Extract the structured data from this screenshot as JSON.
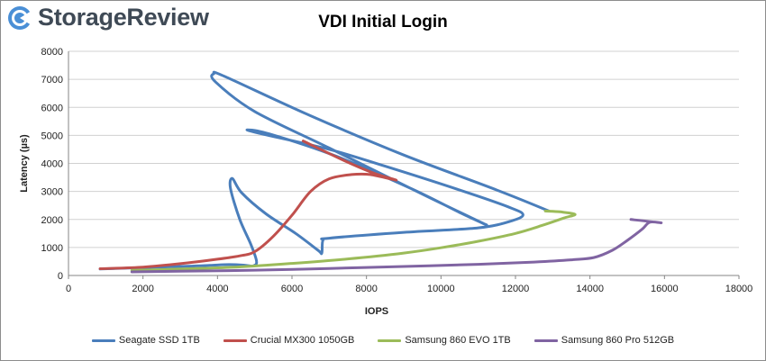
{
  "brand": {
    "name": "StorageReview",
    "icon": "storagereview-logo-icon",
    "icon_color": "#4a8fd6"
  },
  "chart_data": {
    "type": "line",
    "title": "VDI Initial Login",
    "xlabel": "IOPS",
    "ylabel": "Latency (µs)",
    "xlim": [
      0,
      18000
    ],
    "ylim": [
      0,
      8000
    ],
    "x_ticks": [
      0,
      2000,
      4000,
      6000,
      8000,
      10000,
      12000,
      14000,
      16000,
      18000
    ],
    "y_ticks": [
      0,
      1000,
      2000,
      3000,
      4000,
      5000,
      6000,
      7000,
      8000
    ],
    "grid": "horizontal",
    "legend": "bottom",
    "series": [
      {
        "name": "Seagate SSD 1TB",
        "color": "#4a7ebb",
        "points": [
          [
            850,
            230
          ],
          [
            2200,
            290
          ],
          [
            3200,
            330
          ],
          [
            3800,
            360
          ],
          [
            4300,
            390
          ],
          [
            4700,
            370
          ],
          [
            4950,
            340
          ],
          [
            5050,
            500
          ],
          [
            4900,
            1100
          ],
          [
            4600,
            2000
          ],
          [
            4350,
            3100
          ],
          [
            4400,
            3460
          ],
          [
            4650,
            2950
          ],
          [
            5300,
            2200
          ],
          [
            6100,
            1500
          ],
          [
            6700,
            900
          ],
          [
            6800,
            800
          ],
          [
            6830,
            1250
          ],
          [
            7000,
            1330
          ],
          [
            9000,
            1540
          ],
          [
            11000,
            1700
          ],
          [
            11900,
            1950
          ],
          [
            12200,
            2180
          ],
          [
            11800,
            2450
          ],
          [
            10500,
            3050
          ],
          [
            8500,
            3900
          ],
          [
            7000,
            4500
          ],
          [
            5200,
            5050
          ],
          [
            4800,
            5200
          ],
          [
            5400,
            5050
          ],
          [
            7200,
            4250
          ],
          [
            9200,
            3100
          ],
          [
            10500,
            2250
          ],
          [
            11200,
            1820
          ],
          [
            9500,
            2900
          ],
          [
            7000,
            4550
          ],
          [
            5000,
            5850
          ],
          [
            3950,
            6900
          ],
          [
            3900,
            7200
          ],
          [
            4200,
            7100
          ],
          [
            6500,
            5700
          ],
          [
            9000,
            4300
          ],
          [
            11500,
            3050
          ],
          [
            12900,
            2300
          ]
        ]
      },
      {
        "name": "Crucial MX300 1050GB",
        "color": "#c0504d",
        "points": [
          [
            850,
            240
          ],
          [
            2000,
            300
          ],
          [
            3000,
            420
          ],
          [
            4000,
            580
          ],
          [
            4600,
            700
          ],
          [
            5000,
            850
          ],
          [
            5500,
            1400
          ],
          [
            6000,
            2150
          ],
          [
            6500,
            3000
          ],
          [
            7000,
            3450
          ],
          [
            7600,
            3600
          ],
          [
            8100,
            3600
          ],
          [
            8800,
            3400
          ],
          [
            8200,
            3650
          ],
          [
            7400,
            4100
          ],
          [
            6300,
            4800
          ]
        ]
      },
      {
        "name": "Samsung 860 EVO 1TB",
        "color": "#9bbb59",
        "points": [
          [
            1700,
            180
          ],
          [
            3000,
            230
          ],
          [
            4500,
            300
          ],
          [
            6000,
            430
          ],
          [
            7500,
            590
          ],
          [
            9000,
            800
          ],
          [
            10000,
            990
          ],
          [
            11000,
            1220
          ],
          [
            12000,
            1500
          ],
          [
            12700,
            1780
          ],
          [
            13300,
            2050
          ],
          [
            13600,
            2180
          ],
          [
            13200,
            2270
          ],
          [
            12800,
            2300
          ]
        ]
      },
      {
        "name": "Samsung 860 Pro 512GB",
        "color": "#8064a2",
        "points": [
          [
            1700,
            130
          ],
          [
            3000,
            150
          ],
          [
            5000,
            190
          ],
          [
            7000,
            250
          ],
          [
            9000,
            320
          ],
          [
            11000,
            400
          ],
          [
            12500,
            480
          ],
          [
            13500,
            560
          ],
          [
            14100,
            640
          ],
          [
            14600,
            900
          ],
          [
            15000,
            1250
          ],
          [
            15400,
            1650
          ],
          [
            15600,
            1900
          ],
          [
            15900,
            1880
          ],
          [
            15100,
            2000
          ]
        ]
      }
    ]
  }
}
